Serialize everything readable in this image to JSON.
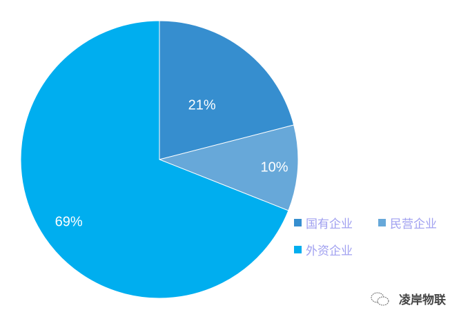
{
  "chart_data": {
    "type": "pie",
    "title": "",
    "categories": [
      "国有企业",
      "民营企业",
      "外资企业"
    ],
    "values": [
      21,
      10,
      69
    ],
    "labels": [
      "21%",
      "10%",
      "69%"
    ],
    "colors": [
      "#368ECF",
      "#67A8D9",
      "#00AEEF"
    ],
    "start_angle": "top, clockwise",
    "legend_position": "right-bottom"
  },
  "watermark": {
    "text": "凌岸物联",
    "icon": "wechat-icon"
  }
}
